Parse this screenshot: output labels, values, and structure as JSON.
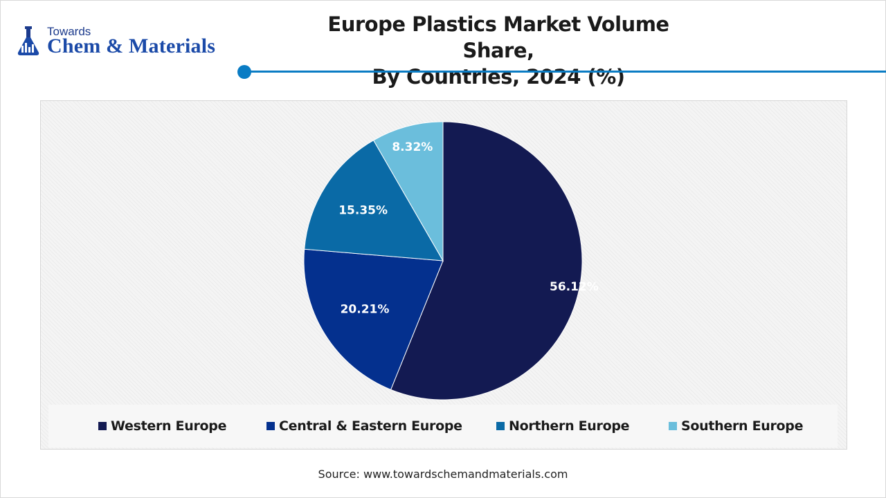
{
  "brand": {
    "small": "Towards",
    "big": "Chem & Materials",
    "color": "#1b4aa8"
  },
  "header": {
    "title_line1": "Europe Plastics Market Volume Share,",
    "title_line2": "By Countries, 2024 (%)"
  },
  "chart_data": {
    "type": "pie",
    "title": "Europe Plastics Market Volume Share, By Countries, 2024 (%)",
    "categories": [
      "Western Europe",
      "Central & Eastern Europe",
      "Northern Europe",
      "Southern Europe"
    ],
    "values": [
      56.12,
      20.21,
      15.35,
      8.32
    ],
    "labels": [
      "56.12%",
      "20.21%",
      "15.35%",
      "8.32%"
    ],
    "colors": [
      "#131a52",
      "#04308e",
      "#0a6aa6",
      "#6bbedc"
    ],
    "start_angle": "12 o'clock",
    "direction": "clockwise",
    "legend_position": "bottom"
  },
  "footer": {
    "source": "Source: www.towardschemandmaterials.com"
  }
}
